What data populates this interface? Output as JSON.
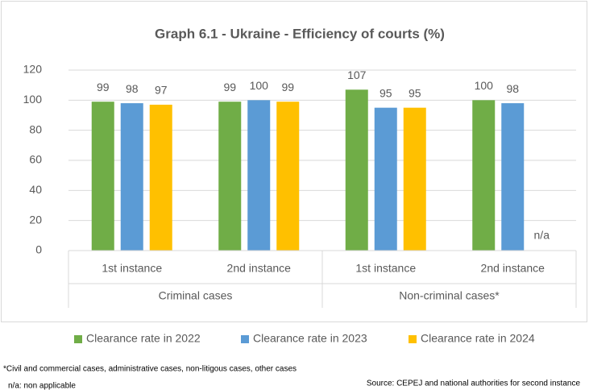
{
  "chart_data": {
    "type": "bar",
    "title": "Graph 6.1 - Ukraine - Efficiency of courts (%)",
    "groups": [
      {
        "name": "Criminal cases",
        "categories": [
          "1st instance",
          "2nd instance"
        ]
      },
      {
        "name": "Non-criminal cases*",
        "categories": [
          "1st instance",
          "2nd instance"
        ]
      }
    ],
    "series": [
      {
        "name": "Clearance rate in 2022",
        "color": "#70ad47",
        "values": [
          99,
          99,
          107,
          100
        ]
      },
      {
        "name": "Clearance rate in 2023",
        "color": "#5b9bd5",
        "values": [
          98,
          100,
          95,
          98
        ]
      },
      {
        "name": "Clearance rate in 2024",
        "color": "#ffc000",
        "values": [
          97,
          99,
          95,
          null
        ],
        "value_labels": [
          "97",
          "99",
          "95",
          "n/a"
        ]
      }
    ],
    "ylim": [
      0,
      120
    ],
    "yticks": [
      0,
      20,
      40,
      60,
      80,
      100,
      120
    ],
    "grid": true,
    "legend": "bottom",
    "footnotes": [
      "*Civil and commercial cases, administrative cases, non-litigous cases, other cases",
      "n/a: non applicable"
    ],
    "source": "Source: CEPEJ and national authorities for second instance"
  }
}
